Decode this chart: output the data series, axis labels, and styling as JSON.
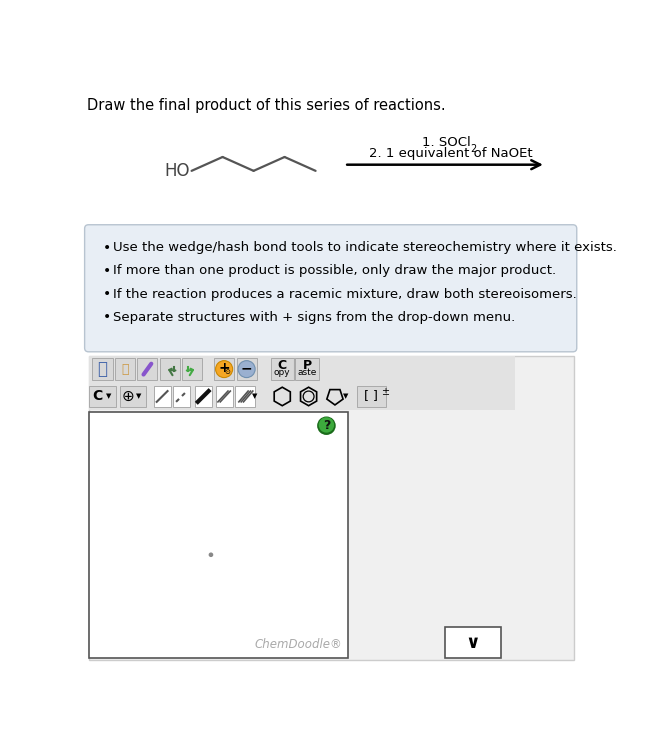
{
  "title": "Draw the final product of this series of reactions.",
  "title_fontsize": 10.5,
  "title_color": "#000000",
  "background_color": "#ffffff",
  "reaction_label_1": "1. SOCl",
  "reaction_label_1_sub": "2",
  "reaction_label_2": "2. 1 equivalent of NaOEt",
  "ho_label": "HO",
  "molecule_color": "#444444",
  "bullet_points": [
    "Use the wedge/hash bond tools to indicate stereochemistry where it exists.",
    "If more than one product is possible, only draw the major product.",
    "If the reaction produces a racemic mixture, draw both stereoisomers.",
    "Separate structures with + signs from the drop-down menu."
  ],
  "bullet_box_bg": "#e8eef5",
  "bullet_box_border": "#b8c4d0",
  "chemdoodle_text": "ChemDoodle®",
  "chemdoodle_color": "#aaaaaa",
  "canvas_bg": "#ffffff",
  "canvas_border": "#555555",
  "help_circle_color_outer": "#2d7a2d",
  "help_circle_color_inner": "#44bb44",
  "help_text_color": "#111111",
  "dot_color": "#888888",
  "dropdown_border": "#555555",
  "toolbar_section_bg": "#e2e2e2",
  "toolbar_outer_bg": "#ebebeb",
  "outer_section_bg": "#f0f0f0",
  "outer_border_color": "#cccccc"
}
